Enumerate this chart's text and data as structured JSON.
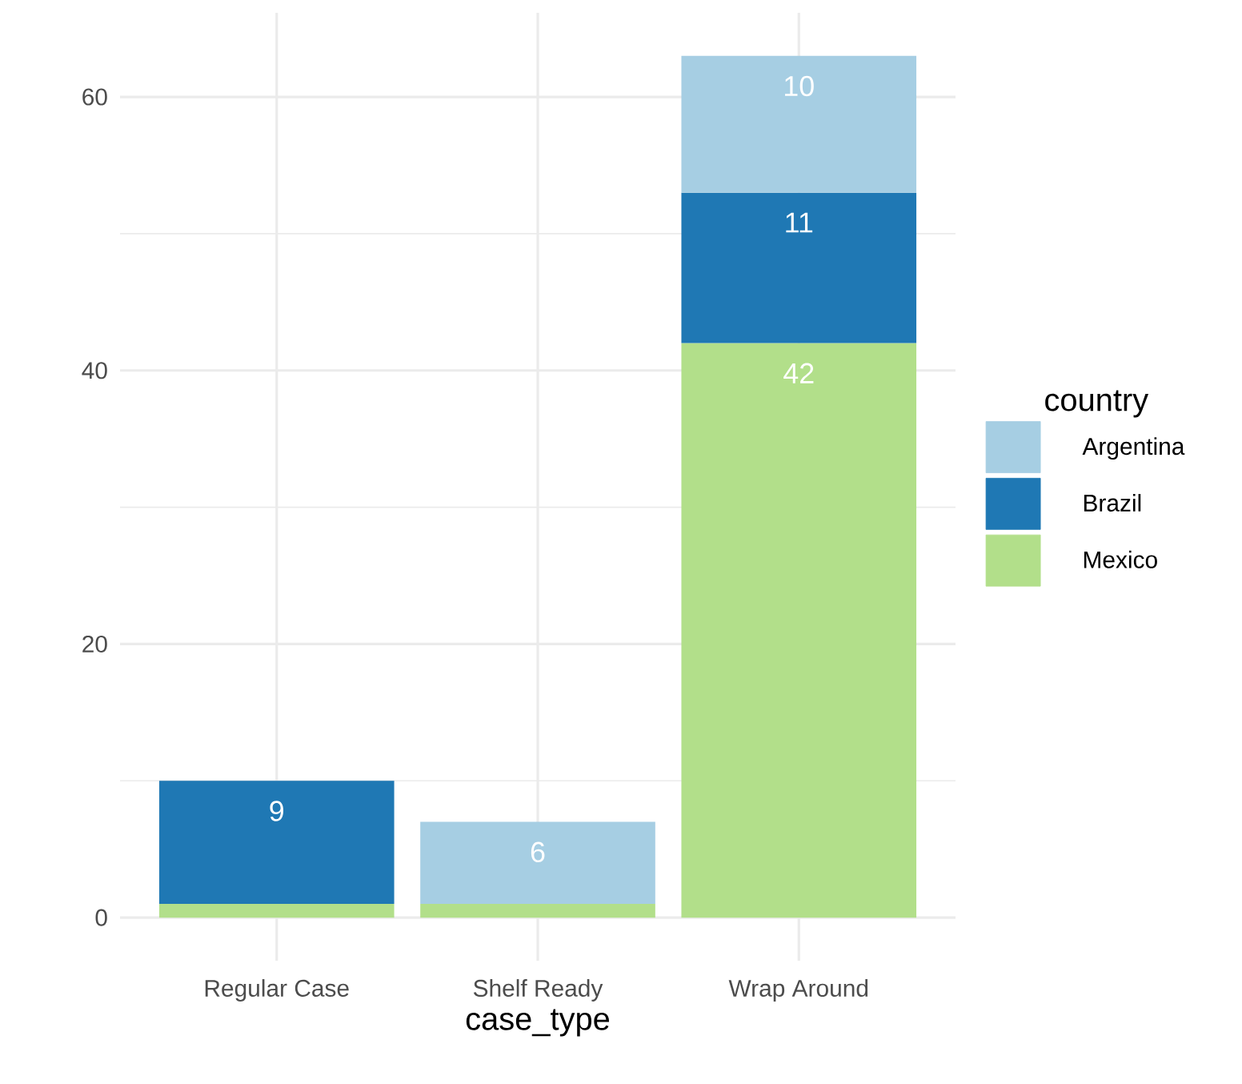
{
  "chart_data": {
    "type": "bar",
    "stacked": true,
    "xlabel": "case_type",
    "legend_title": "country",
    "legend": "right",
    "grid": true,
    "categories": [
      "Regular Case",
      "Shelf Ready",
      "Wrap Around"
    ],
    "series": [
      {
        "name": "Mexico",
        "color": "#b2df8a",
        "values": [
          1,
          1,
          42
        ],
        "value_labels": [
          null,
          null,
          "42"
        ]
      },
      {
        "name": "Brazil",
        "color": "#1f78b4",
        "values": [
          9,
          null,
          11
        ],
        "value_labels": [
          "9",
          null,
          "11"
        ]
      },
      {
        "name": "Argentina",
        "color": "#a6cee3",
        "values": [
          null,
          6,
          10
        ],
        "value_labels": [
          null,
          "6",
          "10"
        ]
      }
    ],
    "ylim": [
      -3.15,
      66.15
    ],
    "yticks": [
      0,
      {
        "value": 10,
        "label": null
      },
      20,
      {
        "value": 30,
        "label": null
      },
      40,
      {
        "value": 50,
        "label": null
      },
      60
    ]
  }
}
